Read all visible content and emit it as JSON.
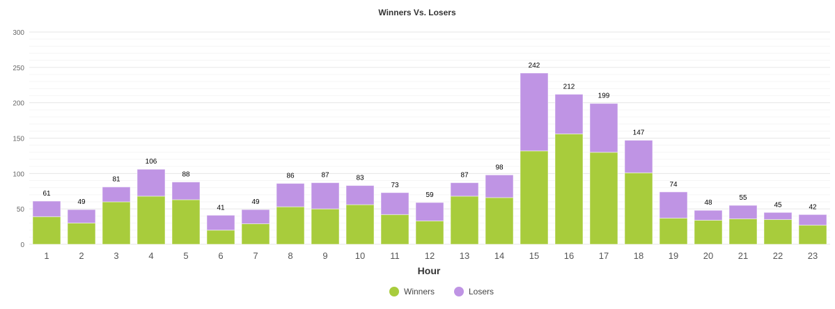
{
  "chart_data": {
    "type": "bar",
    "stacked": true,
    "title": "Winners Vs. Losers",
    "xlabel": "Hour",
    "ylabel": "",
    "ylim": [
      0,
      300
    ],
    "yticks": [
      0,
      50,
      100,
      150,
      200,
      250,
      300
    ],
    "grid": true,
    "legend_position": "bottom-center",
    "categories": [
      "1",
      "2",
      "3",
      "4",
      "5",
      "6",
      "7",
      "8",
      "9",
      "10",
      "11",
      "12",
      "13",
      "14",
      "15",
      "16",
      "17",
      "18",
      "19",
      "20",
      "21",
      "22",
      "23"
    ],
    "totals": [
      61,
      49,
      81,
      106,
      88,
      41,
      49,
      86,
      87,
      83,
      73,
      59,
      87,
      98,
      242,
      212,
      199,
      147,
      74,
      48,
      55,
      45,
      42
    ],
    "series": [
      {
        "name": "Winners",
        "color": "#a8cc3c",
        "values": [
          39,
          30,
          60,
          68,
          63,
          20,
          29,
          53,
          50,
          56,
          42,
          33,
          68,
          66,
          132,
          156,
          130,
          101,
          37,
          34,
          36,
          35,
          27
        ]
      },
      {
        "name": "Losers",
        "color": "#bf94e4",
        "values": [
          22,
          19,
          21,
          38,
          25,
          21,
          20,
          33,
          37,
          27,
          31,
          26,
          19,
          32,
          110,
          56,
          69,
          46,
          37,
          14,
          19,
          10,
          15
        ]
      }
    ]
  }
}
